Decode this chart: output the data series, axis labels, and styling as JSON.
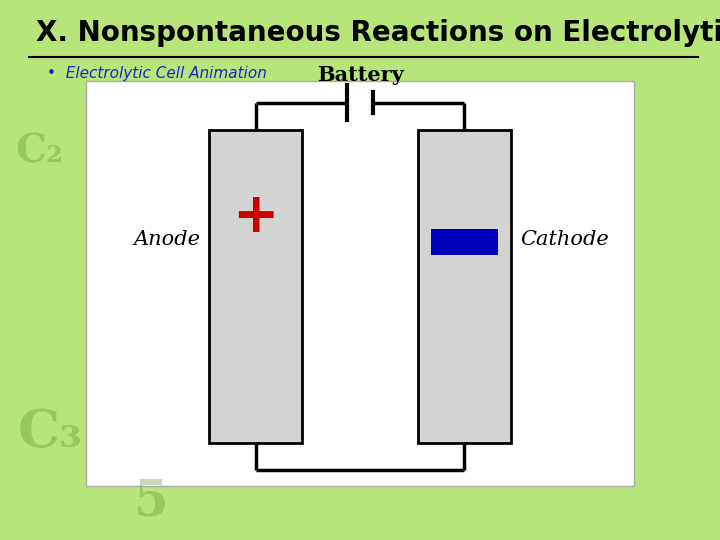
{
  "title": "X. Nonspontaneous Reactions on Electrolytic Cells",
  "subtitle": "Electrolytic Cell Animation",
  "bg_color": "#b8e57a",
  "diagram_bg": "#ffffff",
  "electrode_color": "#d3d3d3",
  "electrode_border": "#000000",
  "plus_color": "#cc0000",
  "minus_color": "#0000bb",
  "wire_color": "#000000",
  "anode_label": "Anode",
  "cathode_label": "Cathode",
  "battery_label": "Battery",
  "title_fontsize": 20,
  "subtitle_fontsize": 11
}
